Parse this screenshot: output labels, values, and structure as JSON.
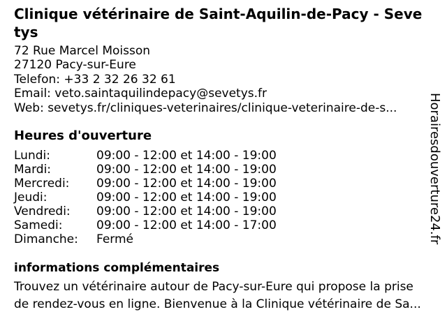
{
  "colors": {
    "background": "#ffffff",
    "text": "#000000"
  },
  "header": {
    "title_lines": [
      "Clinique vétérinaire de Saint-Aquilin-de-Pacy - Seve",
      "tys"
    ]
  },
  "contact": {
    "lines": [
      "72 Rue Marcel Moisson",
      "27120 Pacy-sur-Eure",
      "Telefon: +33 2 32 26 32 61",
      "Email: veto.saintaquilindepacy@sevetys.fr",
      "Web: sevetys.fr/cliniques-veterinaires/clinique-veterinaire-de-s..."
    ]
  },
  "hours": {
    "heading": "Heures d'ouverture",
    "rows": [
      {
        "day": "Lundi:",
        "time": "09:00 - 12:00 et 14:00 - 19:00"
      },
      {
        "day": "Mardi:",
        "time": "09:00 - 12:00 et 14:00 - 19:00"
      },
      {
        "day": "Mercredi:",
        "time": "09:00 - 12:00 et 14:00 - 19:00"
      },
      {
        "day": "Jeudi:",
        "time": "09:00 - 12:00 et 14:00 - 19:00"
      },
      {
        "day": "Vendredi:",
        "time": "09:00 - 12:00 et 14:00 - 19:00"
      },
      {
        "day": "Samedi:",
        "time": "09:00 - 12:00 et 14:00 - 17:00"
      },
      {
        "day": "Dimanche:",
        "time": "Fermé"
      }
    ]
  },
  "info": {
    "heading": "informations complémentaires",
    "lines": [
      "Trouvez un vétérinaire autour de Pacy-sur-Eure qui propose la prise",
      "de rendez-vous en ligne. Bienvenue à la Clinique vétérinaire de Sa..."
    ]
  },
  "watermark": {
    "text": "Horairesdouverture24.fr"
  }
}
